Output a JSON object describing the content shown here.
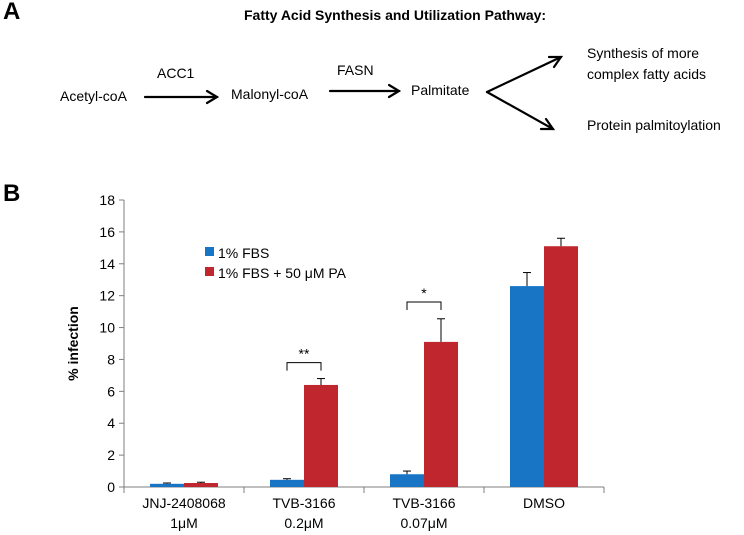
{
  "panel_a": {
    "label": "A",
    "title": "Fatty Acid Synthesis and Utilization Pathway:",
    "nodes": {
      "acetyl": "Acetyl-coA",
      "malonyl": "Malonyl-coA",
      "palmitate": "Palmitate",
      "complex_line1": "Synthesis of more",
      "complex_line2": "complex fatty acids",
      "palmitoylation": "Protein palmitoylation"
    },
    "enzymes": {
      "acc1": "ACC1",
      "fasn": "FASN"
    }
  },
  "panel_b": {
    "label": "B"
  },
  "chart_data": {
    "type": "bar",
    "title": "",
    "xlabel": "",
    "ylabel": "% infection",
    "ylim": [
      0,
      18
    ],
    "yticks": [
      0,
      2,
      4,
      6,
      8,
      10,
      12,
      14,
      16,
      18
    ],
    "categories": [
      {
        "line1": "JNJ-2408068",
        "line2": "1μM"
      },
      {
        "line1": "TVB-3166",
        "line2": "0.2μM"
      },
      {
        "line1": "TVB-3166",
        "line2": "0.07μM"
      },
      {
        "line1": "DMSO",
        "line2": ""
      }
    ],
    "series": [
      {
        "name": "1% FBS",
        "color": "#1874c4",
        "values": [
          0.2,
          0.45,
          0.8,
          12.6
        ],
        "errors": [
          0.05,
          0.07,
          0.2,
          0.85
        ]
      },
      {
        "name": "1% FBS + 50 μM PA",
        "color": "#c0262d",
        "values": [
          0.25,
          6.4,
          9.1,
          15.1
        ],
        "errors": [
          0.05,
          0.4,
          1.45,
          0.5
        ]
      }
    ],
    "significance": [
      {
        "category_index": 1,
        "label": "**",
        "bracket_y": 7.8
      },
      {
        "category_index": 2,
        "label": "*",
        "bracket_y": 11.6
      }
    ],
    "legend_position": "top-left"
  }
}
